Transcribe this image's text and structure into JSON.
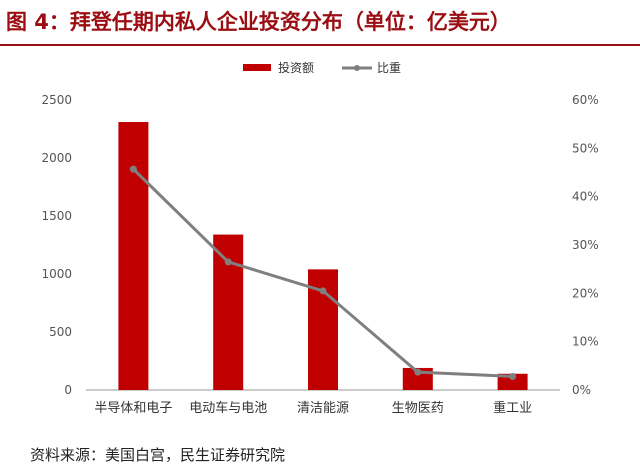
{
  "title": "图 4：拜登任期内私人企业投资分布（单位：亿美元）",
  "source": "资料来源：美国白宫，民生证券研究院",
  "colors": {
    "bar": "#c00000",
    "line": "#7f7f7f",
    "accent": "#9b0d12"
  },
  "chart_data": {
    "type": "bar",
    "categories": [
      "半导体和电子",
      "电动车与电池",
      "清洁能源",
      "生物医药",
      "重工业"
    ],
    "series": [
      {
        "name": "投资额",
        "type": "bar",
        "axis": "left",
        "values": [
          2310,
          1340,
          1040,
          190,
          140
        ]
      },
      {
        "name": "比重",
        "type": "line",
        "axis": "right",
        "values": [
          0.457,
          0.265,
          0.205,
          0.037,
          0.028
        ]
      }
    ],
    "y_left": {
      "min": 0,
      "max": 2500,
      "step": 500,
      "ticks": [
        "0",
        "500",
        "1000",
        "1500",
        "2000",
        "2500"
      ]
    },
    "y_right": {
      "min": 0,
      "max": 0.6,
      "step": 0.1,
      "ticks": [
        "0%",
        "10%",
        "20%",
        "30%",
        "40%",
        "50%",
        "60%"
      ]
    },
    "legend_position": "top-center",
    "grid": false
  }
}
